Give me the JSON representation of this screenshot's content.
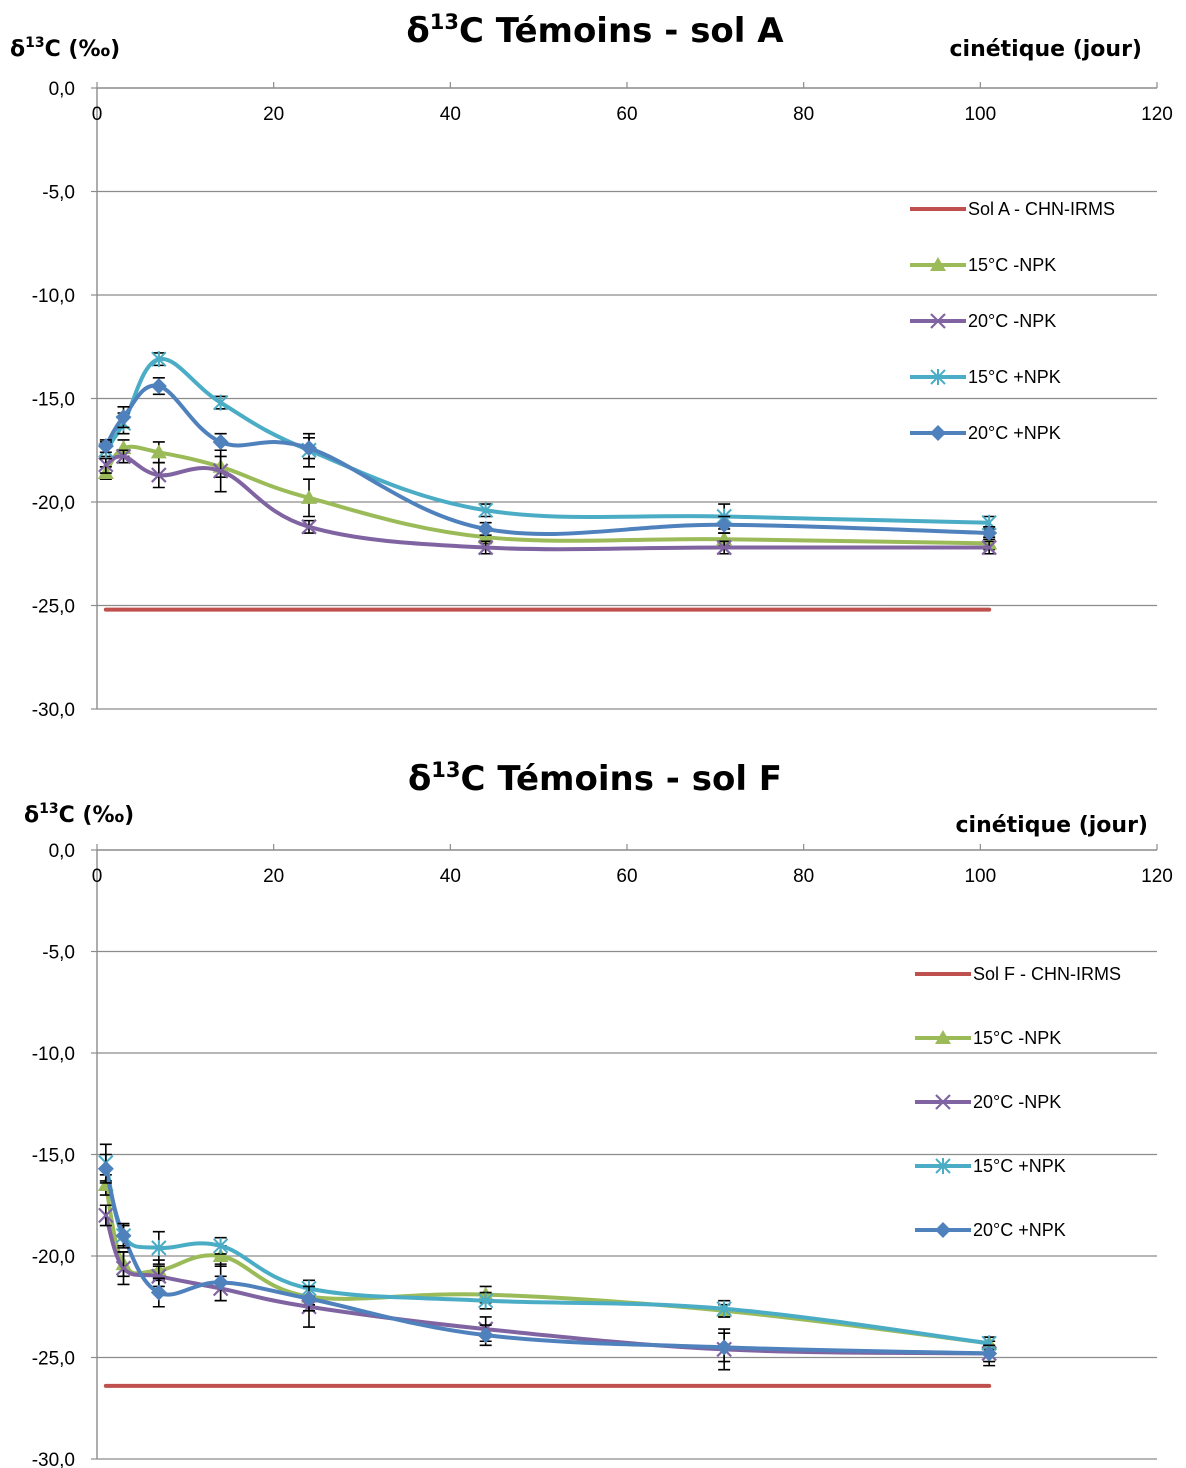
{
  "chart_data": [
    {
      "type": "line",
      "title_prefix": "δ",
      "title_sup": "13",
      "title_rest": "C Témoins - sol A",
      "ylabel_prefix": "δ",
      "ylabel_sup": "13",
      "ylabel_rest": "C (‰)",
      "xlabel": "cinétique (jour)",
      "xlim": [
        0,
        120
      ],
      "ylim": [
        -30,
        0
      ],
      "x_ticks": [
        "0",
        "20",
        "40",
        "60",
        "80",
        "100",
        "120"
      ],
      "y_ticks": [
        "0,0",
        "-5,0",
        "-10,0",
        "-15,0",
        "-20,0",
        "-25,0",
        "-30,0"
      ],
      "grid": true,
      "legend_position": "right",
      "series": [
        {
          "name": "Sol A - CHN-IRMS",
          "color": "#c0504d",
          "marker": "none",
          "x": [
            1,
            101
          ],
          "y": [
            -25.2,
            -25.2
          ]
        },
        {
          "name": "15°C  -NPK",
          "color": "#9bbb59",
          "marker": "triangle",
          "x": [
            1,
            3,
            7,
            14,
            24,
            44,
            71,
            101
          ],
          "y": [
            -18.6,
            -17.4,
            -17.6,
            -18.3,
            -19.8,
            -21.7,
            -21.8,
            -22.0
          ],
          "err": [
            0.3,
            0.4,
            0.5,
            0.5,
            0.9,
            0.3,
            0.3,
            0.3
          ]
        },
        {
          "name": "20°C  -NPK",
          "color": "#8064a2",
          "marker": "x",
          "x": [
            1,
            3,
            7,
            14,
            24,
            44,
            71,
            101
          ],
          "y": [
            -18.2,
            -17.8,
            -18.7,
            -18.5,
            -21.2,
            -22.2,
            -22.2,
            -22.2
          ],
          "err": [
            0.4,
            0.3,
            0.6,
            1.0,
            0.3,
            0.3,
            0.3,
            0.3
          ]
        },
        {
          "name": "15°C  +NPK",
          "color": "#4bacc6",
          "marker": "star",
          "x": [
            1,
            3,
            7,
            14,
            24,
            44,
            71,
            101
          ],
          "y": [
            -17.5,
            -16.2,
            -13.1,
            -15.2,
            -17.5,
            -20.4,
            -20.7,
            -21.0
          ],
          "err": [
            0.4,
            0.5,
            0.3,
            0.3,
            0.8,
            0.3,
            0.6,
            0.3
          ]
        },
        {
          "name": "20°C  +NPK",
          "color": "#4f81bd",
          "marker": "diamond",
          "x": [
            1,
            3,
            7,
            14,
            24,
            44,
            71,
            101
          ],
          "y": [
            -17.3,
            -15.9,
            -14.4,
            -17.1,
            -17.4,
            -21.3,
            -21.1,
            -21.5
          ],
          "err": [
            0.3,
            0.5,
            0.4,
            0.4,
            0.5,
            0.3,
            0.4,
            0.3
          ]
        }
      ]
    },
    {
      "type": "line",
      "title_prefix": "δ",
      "title_sup": "13",
      "title_rest": "C Témoins - sol F",
      "ylabel_prefix": "δ",
      "ylabel_sup": "13",
      "ylabel_rest": "C (‰)",
      "xlabel": "cinétique (jour)",
      "xlim": [
        0,
        120
      ],
      "ylim": [
        -30,
        0
      ],
      "x_ticks": [
        "0",
        "20",
        "40",
        "60",
        "80",
        "100",
        "120"
      ],
      "y_ticks": [
        "0,0",
        "-5,0",
        "-10,0",
        "-15,0",
        "-20,0",
        "-25,0",
        "-30,0"
      ],
      "grid": true,
      "legend_position": "right",
      "series": [
        {
          "name": "Sol F - CHN-IRMS",
          "color": "#c0504d",
          "marker": "none",
          "x": [
            1,
            101
          ],
          "y": [
            -26.4,
            -26.4
          ]
        },
        {
          "name": "15°C  -NPK",
          "color": "#9bbb59",
          "marker": "triangle",
          "x": [
            1,
            3,
            7,
            14,
            24,
            44,
            71,
            101
          ],
          "y": [
            -16.5,
            -20.4,
            -20.7,
            -20.0,
            -22.0,
            -21.9,
            -22.7,
            -24.3
          ],
          "err": [
            0.5,
            0.6,
            0.5,
            0.5,
            0.4,
            0.4,
            0.3,
            0.3
          ]
        },
        {
          "name": "20°C  -NPK",
          "color": "#8064a2",
          "marker": "x",
          "x": [
            1,
            3,
            7,
            14,
            24,
            44,
            71,
            101
          ],
          "y": [
            -18.0,
            -20.6,
            -21.0,
            -21.6,
            -22.5,
            -23.6,
            -24.6,
            -24.8
          ],
          "err": [
            0.5,
            0.8,
            0.5,
            0.6,
            1.0,
            0.6,
            1.0,
            0.6
          ]
        },
        {
          "name": "15°C  +NPK",
          "color": "#4bacc6",
          "marker": "star",
          "x": [
            1,
            3,
            7,
            14,
            24,
            44,
            71,
            101
          ],
          "y": [
            -15.4,
            -19.0,
            -19.6,
            -19.5,
            -21.6,
            -22.2,
            -22.6,
            -24.3
          ],
          "err": [
            0.9,
            0.5,
            0.8,
            0.4,
            0.4,
            0.4,
            0.4,
            0.3
          ]
        },
        {
          "name": "20°C  +NPK",
          "color": "#4f81bd",
          "marker": "diamond",
          "x": [
            1,
            3,
            7,
            14,
            24,
            44,
            71,
            101
          ],
          "y": [
            -15.7,
            -19.0,
            -21.8,
            -21.3,
            -22.1,
            -23.9,
            -24.5,
            -24.8
          ],
          "err": [
            0.7,
            0.6,
            0.7,
            0.9,
            0.6,
            0.5,
            0.7,
            0.4
          ]
        }
      ]
    }
  ]
}
